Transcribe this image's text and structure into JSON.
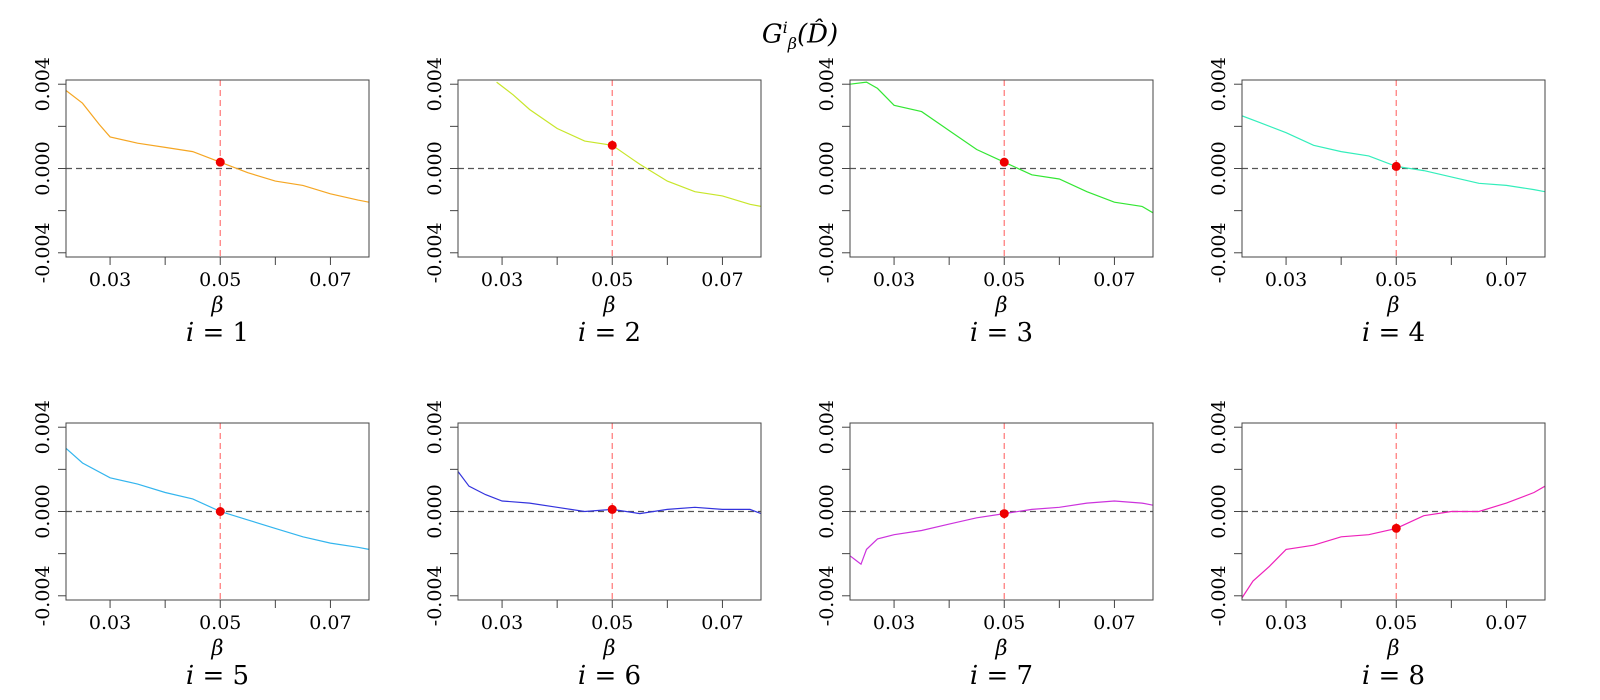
{
  "suptitle": {
    "base": "G",
    "sup": "i",
    "sub": "β",
    "arg": "(D̂)"
  },
  "chart_data": {
    "type": "line",
    "shared": {
      "xlabel": "β",
      "xlim": [
        0.022,
        0.077
      ],
      "ylim": [
        -0.0042,
        0.0042
      ],
      "xticks": [
        0.03,
        0.05,
        0.07
      ],
      "xtick_labels": [
        "0.03",
        "0.05",
        "0.07"
      ],
      "yticks": [
        -0.004,
        0.0,
        0.004
      ],
      "ytick_labels": [
        "-0.004",
        "0.000",
        "0.004"
      ],
      "hline": {
        "y": 0.0,
        "color": "#555555",
        "style": "dashed"
      },
      "vline": {
        "x": 0.05,
        "color": "#ff8080",
        "style": "dashed"
      },
      "marker_color": "#ee0000"
    },
    "panels": [
      {
        "label_var": "i",
        "label_eq": " = ",
        "label_value": "1",
        "color": "#f5a623",
        "x": [
          0.022,
          0.025,
          0.028,
          0.03,
          0.035,
          0.04,
          0.045,
          0.05,
          0.055,
          0.06,
          0.065,
          0.07,
          0.075,
          0.077
        ],
        "y": [
          0.0037,
          0.0031,
          0.0021,
          0.0015,
          0.0012,
          0.001,
          0.0008,
          0.0003,
          -0.0002,
          -0.0006,
          -0.0008,
          -0.0012,
          -0.0015,
          -0.0016
        ],
        "point": {
          "x": 0.05,
          "y": 0.0003
        }
      },
      {
        "label_var": "i",
        "label_eq": " = ",
        "label_value": "2",
        "color": "#c8e62a",
        "x": [
          0.029,
          0.032,
          0.035,
          0.04,
          0.045,
          0.05,
          0.055,
          0.06,
          0.065,
          0.07,
          0.075,
          0.077
        ],
        "y": [
          0.0041,
          0.0035,
          0.0028,
          0.0019,
          0.0013,
          0.0011,
          0.0002,
          -0.0006,
          -0.0011,
          -0.0013,
          -0.0017,
          -0.0018
        ],
        "point": {
          "x": 0.05,
          "y": 0.0011
        }
      },
      {
        "label_var": "i",
        "label_eq": " = ",
        "label_value": "3",
        "color": "#33e633",
        "x": [
          0.022,
          0.025,
          0.027,
          0.03,
          0.035,
          0.04,
          0.045,
          0.05,
          0.055,
          0.06,
          0.065,
          0.07,
          0.075,
          0.077
        ],
        "y": [
          0.004,
          0.0041,
          0.0038,
          0.003,
          0.0027,
          0.0018,
          0.0009,
          0.0003,
          -0.0003,
          -0.0005,
          -0.0011,
          -0.0016,
          -0.0018,
          -0.0021
        ],
        "point": {
          "x": 0.05,
          "y": 0.0003
        }
      },
      {
        "label_var": "i",
        "label_eq": " = ",
        "label_value": "4",
        "color": "#33eebb",
        "x": [
          0.022,
          0.025,
          0.03,
          0.035,
          0.04,
          0.045,
          0.05,
          0.055,
          0.06,
          0.065,
          0.07,
          0.075,
          0.077
        ],
        "y": [
          0.0025,
          0.0022,
          0.0017,
          0.0011,
          0.0008,
          0.0006,
          0.0001,
          -0.0001,
          -0.0004,
          -0.0007,
          -0.0008,
          -0.001,
          -0.0011
        ],
        "point": {
          "x": 0.05,
          "y": 0.0001
        }
      },
      {
        "label_var": "i",
        "label_eq": " = ",
        "label_value": "5",
        "color": "#33b5ee",
        "x": [
          0.022,
          0.025,
          0.03,
          0.035,
          0.04,
          0.045,
          0.05,
          0.055,
          0.06,
          0.065,
          0.07,
          0.075,
          0.077
        ],
        "y": [
          0.003,
          0.0023,
          0.0016,
          0.0013,
          0.0009,
          0.0006,
          0.0,
          -0.0004,
          -0.0008,
          -0.0012,
          -0.0015,
          -0.0017,
          -0.0018
        ],
        "point": {
          "x": 0.05,
          "y": 0.0
        }
      },
      {
        "label_var": "i",
        "label_eq": " = ",
        "label_value": "6",
        "color": "#3333dd",
        "x": [
          0.022,
          0.024,
          0.027,
          0.03,
          0.035,
          0.04,
          0.045,
          0.05,
          0.055,
          0.06,
          0.065,
          0.07,
          0.075,
          0.077
        ],
        "y": [
          0.0019,
          0.0012,
          0.0008,
          0.0005,
          0.0004,
          0.0002,
          0.0,
          0.0001,
          -0.0001,
          0.0001,
          0.0002,
          0.0001,
          0.0001,
          -0.0001
        ],
        "point": {
          "x": 0.05,
          "y": 0.0001
        }
      },
      {
        "label_var": "i",
        "label_eq": " = ",
        "label_value": "7",
        "color": "#cc33dd",
        "x": [
          0.022,
          0.023,
          0.024,
          0.025,
          0.027,
          0.03,
          0.035,
          0.04,
          0.045,
          0.05,
          0.055,
          0.06,
          0.065,
          0.07,
          0.075,
          0.077
        ],
        "y": [
          -0.0021,
          -0.0023,
          -0.0025,
          -0.0018,
          -0.0013,
          -0.0011,
          -0.0009,
          -0.0006,
          -0.0003,
          -0.0001,
          0.0001,
          0.0002,
          0.0004,
          0.0005,
          0.0004,
          0.0003
        ],
        "point": {
          "x": 0.05,
          "y": -0.0001
        }
      },
      {
        "label_var": "i",
        "label_eq": " = ",
        "label_value": "8",
        "color": "#ee22bb",
        "x": [
          0.022,
          0.024,
          0.027,
          0.03,
          0.035,
          0.04,
          0.045,
          0.05,
          0.055,
          0.06,
          0.065,
          0.07,
          0.075,
          0.077
        ],
        "y": [
          -0.0041,
          -0.0033,
          -0.0026,
          -0.0018,
          -0.0016,
          -0.0012,
          -0.0011,
          -0.0008,
          -0.0002,
          0.0,
          0.0,
          0.0004,
          0.0009,
          0.0012
        ],
        "point": {
          "x": 0.05,
          "y": -0.0008
        }
      }
    ]
  }
}
